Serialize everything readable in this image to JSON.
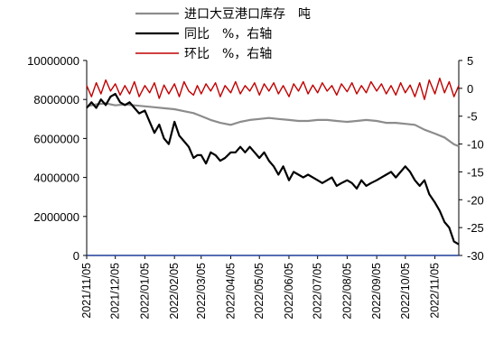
{
  "chart_data": {
    "type": "line",
    "title": "",
    "xlabel": "",
    "ylabel_left": "",
    "ylabel_right": "",
    "categories": [
      "2021/11/05",
      "2021/12/05",
      "2022/01/05",
      "2022/02/05",
      "2022/03/05",
      "2022/04/05",
      "2022/05/05",
      "2022/06/05",
      "2022/07/05",
      "2022/08/05",
      "2022/09/05",
      "2022/10/05",
      "2022/11/05"
    ],
    "x_range": [
      "2021/11/05",
      "2022/11/30"
    ],
    "left_axis": {
      "ylim": [
        0,
        10000000
      ],
      "ticks": [
        "0",
        "2000000",
        "4000000",
        "6000000",
        "8000000",
        "10000000"
      ]
    },
    "right_axis": {
      "ylim": [
        -30,
        5
      ],
      "ticks": [
        "5",
        "0",
        "-5",
        "-10",
        "-15",
        "-20",
        "-25",
        "-30"
      ]
    },
    "legend": {
      "placement": "top"
    },
    "grid": false,
    "series": [
      {
        "name": "进口大豆港口库存　吨",
        "axis": "left",
        "color": "#8c8c8c",
        "x": [
          "2021/11/05",
          "2021/11/15",
          "2021/11/25",
          "2021/12/05",
          "2021/12/15",
          "2021/12/25",
          "2022/01/05",
          "2022/01/15",
          "2022/01/25",
          "2022/02/05",
          "2022/02/15",
          "2022/02/25",
          "2022/03/05",
          "2022/03/15",
          "2022/03/25",
          "2022/04/05",
          "2022/04/15",
          "2022/04/25",
          "2022/05/05",
          "2022/05/15",
          "2022/05/25",
          "2022/06/05",
          "2022/06/15",
          "2022/06/25",
          "2022/07/05",
          "2022/07/15",
          "2022/07/25",
          "2022/08/05",
          "2022/08/15",
          "2022/08/25",
          "2022/09/05",
          "2022/09/15",
          "2022/09/25",
          "2022/10/05",
          "2022/10/15",
          "2022/10/25",
          "2022/11/05",
          "2022/11/15",
          "2022/11/25",
          "2022/11/30"
        ],
        "values": [
          7650000,
          7750000,
          7800000,
          7700000,
          7750000,
          7700000,
          7650000,
          7600000,
          7550000,
          7500000,
          7400000,
          7300000,
          7150000,
          6950000,
          6800000,
          6700000,
          6850000,
          6950000,
          7000000,
          7050000,
          7000000,
          6950000,
          6900000,
          6900000,
          6950000,
          6950000,
          6900000,
          6850000,
          6900000,
          6950000,
          6900000,
          6800000,
          6800000,
          6750000,
          6700000,
          6450000,
          6250000,
          6050000,
          5700000,
          5600000
        ]
      },
      {
        "name": "同比　%，右轴",
        "axis": "right",
        "color": "#000000",
        "x": [
          "2021/11/05",
          "2021/11/10",
          "2021/11/15",
          "2021/11/20",
          "2021/11/25",
          "2021/11/30",
          "2021/12/05",
          "2021/12/10",
          "2021/12/15",
          "2021/12/20",
          "2021/12/25",
          "2021/12/30",
          "2022/01/05",
          "2022/01/10",
          "2022/01/15",
          "2022/01/20",
          "2022/01/25",
          "2022/01/30",
          "2022/02/05",
          "2022/02/10",
          "2022/02/15",
          "2022/02/20",
          "2022/02/25",
          "2022/03/01",
          "2022/03/05",
          "2022/03/10",
          "2022/03/15",
          "2022/03/20",
          "2022/03/25",
          "2022/03/30",
          "2022/04/05",
          "2022/04/10",
          "2022/04/15",
          "2022/04/20",
          "2022/04/25",
          "2022/04/30",
          "2022/05/05",
          "2022/05/10",
          "2022/05/15",
          "2022/05/20",
          "2022/05/25",
          "2022/05/30",
          "2022/06/05",
          "2022/06/10",
          "2022/06/15",
          "2022/06/20",
          "2022/06/25",
          "2022/06/30",
          "2022/07/05",
          "2022/07/10",
          "2022/07/15",
          "2022/07/20",
          "2022/07/25",
          "2022/07/30",
          "2022/08/05",
          "2022/08/10",
          "2022/08/15",
          "2022/08/20",
          "2022/08/25",
          "2022/08/30",
          "2022/09/05",
          "2022/09/10",
          "2022/09/15",
          "2022/09/20",
          "2022/09/25",
          "2022/09/30",
          "2022/10/05",
          "2022/10/10",
          "2022/10/15",
          "2022/10/20",
          "2022/10/25",
          "2022/10/30",
          "2022/11/05",
          "2022/11/10",
          "2022/11/15",
          "2022/11/20",
          "2022/11/25",
          "2022/11/30"
        ],
        "values": [
          -3.5,
          -2.5,
          -3.5,
          -2.0,
          -3.0,
          -1.5,
          -1.0,
          -2.5,
          -3.0,
          -2.5,
          -3.5,
          -4.5,
          -4.0,
          -6.0,
          -8.0,
          -6.5,
          -9.0,
          -10.0,
          -6.0,
          -8.5,
          -9.5,
          -10.5,
          -12.5,
          -12.0,
          -12.0,
          -13.5,
          -11.5,
          -12.0,
          -13.0,
          -12.5,
          -11.5,
          -11.5,
          -10.5,
          -11.5,
          -10.5,
          -11.5,
          -12.5,
          -11.5,
          -13.0,
          -14.0,
          -15.5,
          -14.0,
          -16.5,
          -15.0,
          -15.5,
          -16.0,
          -15.5,
          -16.0,
          -16.5,
          -17.0,
          -16.5,
          -16.0,
          -17.5,
          -17.0,
          -16.5,
          -17.0,
          -18.0,
          -16.5,
          -17.5,
          -17.0,
          -16.5,
          -16.0,
          -15.5,
          -15.0,
          -16.0,
          -15.0,
          -14.0,
          -15.0,
          -16.5,
          -17.5,
          -16.5,
          -19.0,
          -20.5,
          -22.0,
          -24.0,
          -25.0,
          -27.5,
          -28.0
        ]
      },
      {
        "name": "环比　%，右轴",
        "axis": "right",
        "color": "#c00000",
        "x": [
          "2021/11/05",
          "2021/11/10",
          "2021/11/15",
          "2021/11/20",
          "2021/11/25",
          "2021/11/30",
          "2021/12/05",
          "2021/12/10",
          "2021/12/15",
          "2021/12/20",
          "2021/12/25",
          "2021/12/30",
          "2022/01/05",
          "2022/01/10",
          "2022/01/15",
          "2022/01/20",
          "2022/01/25",
          "2022/01/30",
          "2022/02/05",
          "2022/02/10",
          "2022/02/15",
          "2022/02/20",
          "2022/02/25",
          "2022/03/01",
          "2022/03/05",
          "2022/03/10",
          "2022/03/15",
          "2022/03/20",
          "2022/03/25",
          "2022/03/30",
          "2022/04/05",
          "2022/04/10",
          "2022/04/15",
          "2022/04/20",
          "2022/04/25",
          "2022/04/30",
          "2022/05/05",
          "2022/05/10",
          "2022/05/15",
          "2022/05/20",
          "2022/05/25",
          "2022/05/30",
          "2022/06/05",
          "2022/06/10",
          "2022/06/15",
          "2022/06/20",
          "2022/06/25",
          "2022/06/30",
          "2022/07/05",
          "2022/07/10",
          "2022/07/15",
          "2022/07/20",
          "2022/07/25",
          "2022/07/30",
          "2022/08/05",
          "2022/08/10",
          "2022/08/15",
          "2022/08/20",
          "2022/08/25",
          "2022/08/30",
          "2022/09/05",
          "2022/09/10",
          "2022/09/15",
          "2022/09/20",
          "2022/09/25",
          "2022/09/30",
          "2022/10/05",
          "2022/10/10",
          "2022/10/15",
          "2022/10/20",
          "2022/10/25",
          "2022/10/30",
          "2022/11/05",
          "2022/11/10",
          "2022/11/15",
          "2022/11/20",
          "2022/11/25",
          "2022/11/30"
        ],
        "values": [
          0.5,
          -1.5,
          1.0,
          -1.0,
          1.5,
          -0.5,
          0.8,
          -1.2,
          0.5,
          -1.0,
          1.2,
          -1.5,
          0.5,
          -0.8,
          1.0,
          -1.8,
          0.6,
          -1.0,
          0.8,
          -1.5,
          1.2,
          -0.5,
          -1.2,
          0.5,
          -1.0,
          0.8,
          -0.5,
          1.0,
          -1.5,
          0.5,
          -0.8,
          1.2,
          -1.0,
          0.5,
          -0.5,
          1.0,
          -1.2,
          0.8,
          -0.5,
          1.0,
          -1.0,
          0.5,
          -1.5,
          0.8,
          -0.5,
          1.2,
          -1.0,
          0.6,
          -0.8,
          1.0,
          -0.5,
          0.5,
          -1.2,
          0.8,
          -0.6,
          1.0,
          -1.0,
          0.5,
          -0.8,
          1.2,
          -0.5,
          0.8,
          -1.0,
          0.5,
          -1.2,
          1.0,
          -0.8,
          0.6,
          -1.5,
          1.0,
          -2.0,
          1.5,
          -1.0,
          1.8,
          -0.8,
          1.2,
          -1.5,
          0.5
        ]
      }
    ]
  },
  "icons": {
    "legend_swatches": [
      "line-swatch-icon",
      "line-swatch-icon",
      "line-swatch-icon"
    ]
  }
}
